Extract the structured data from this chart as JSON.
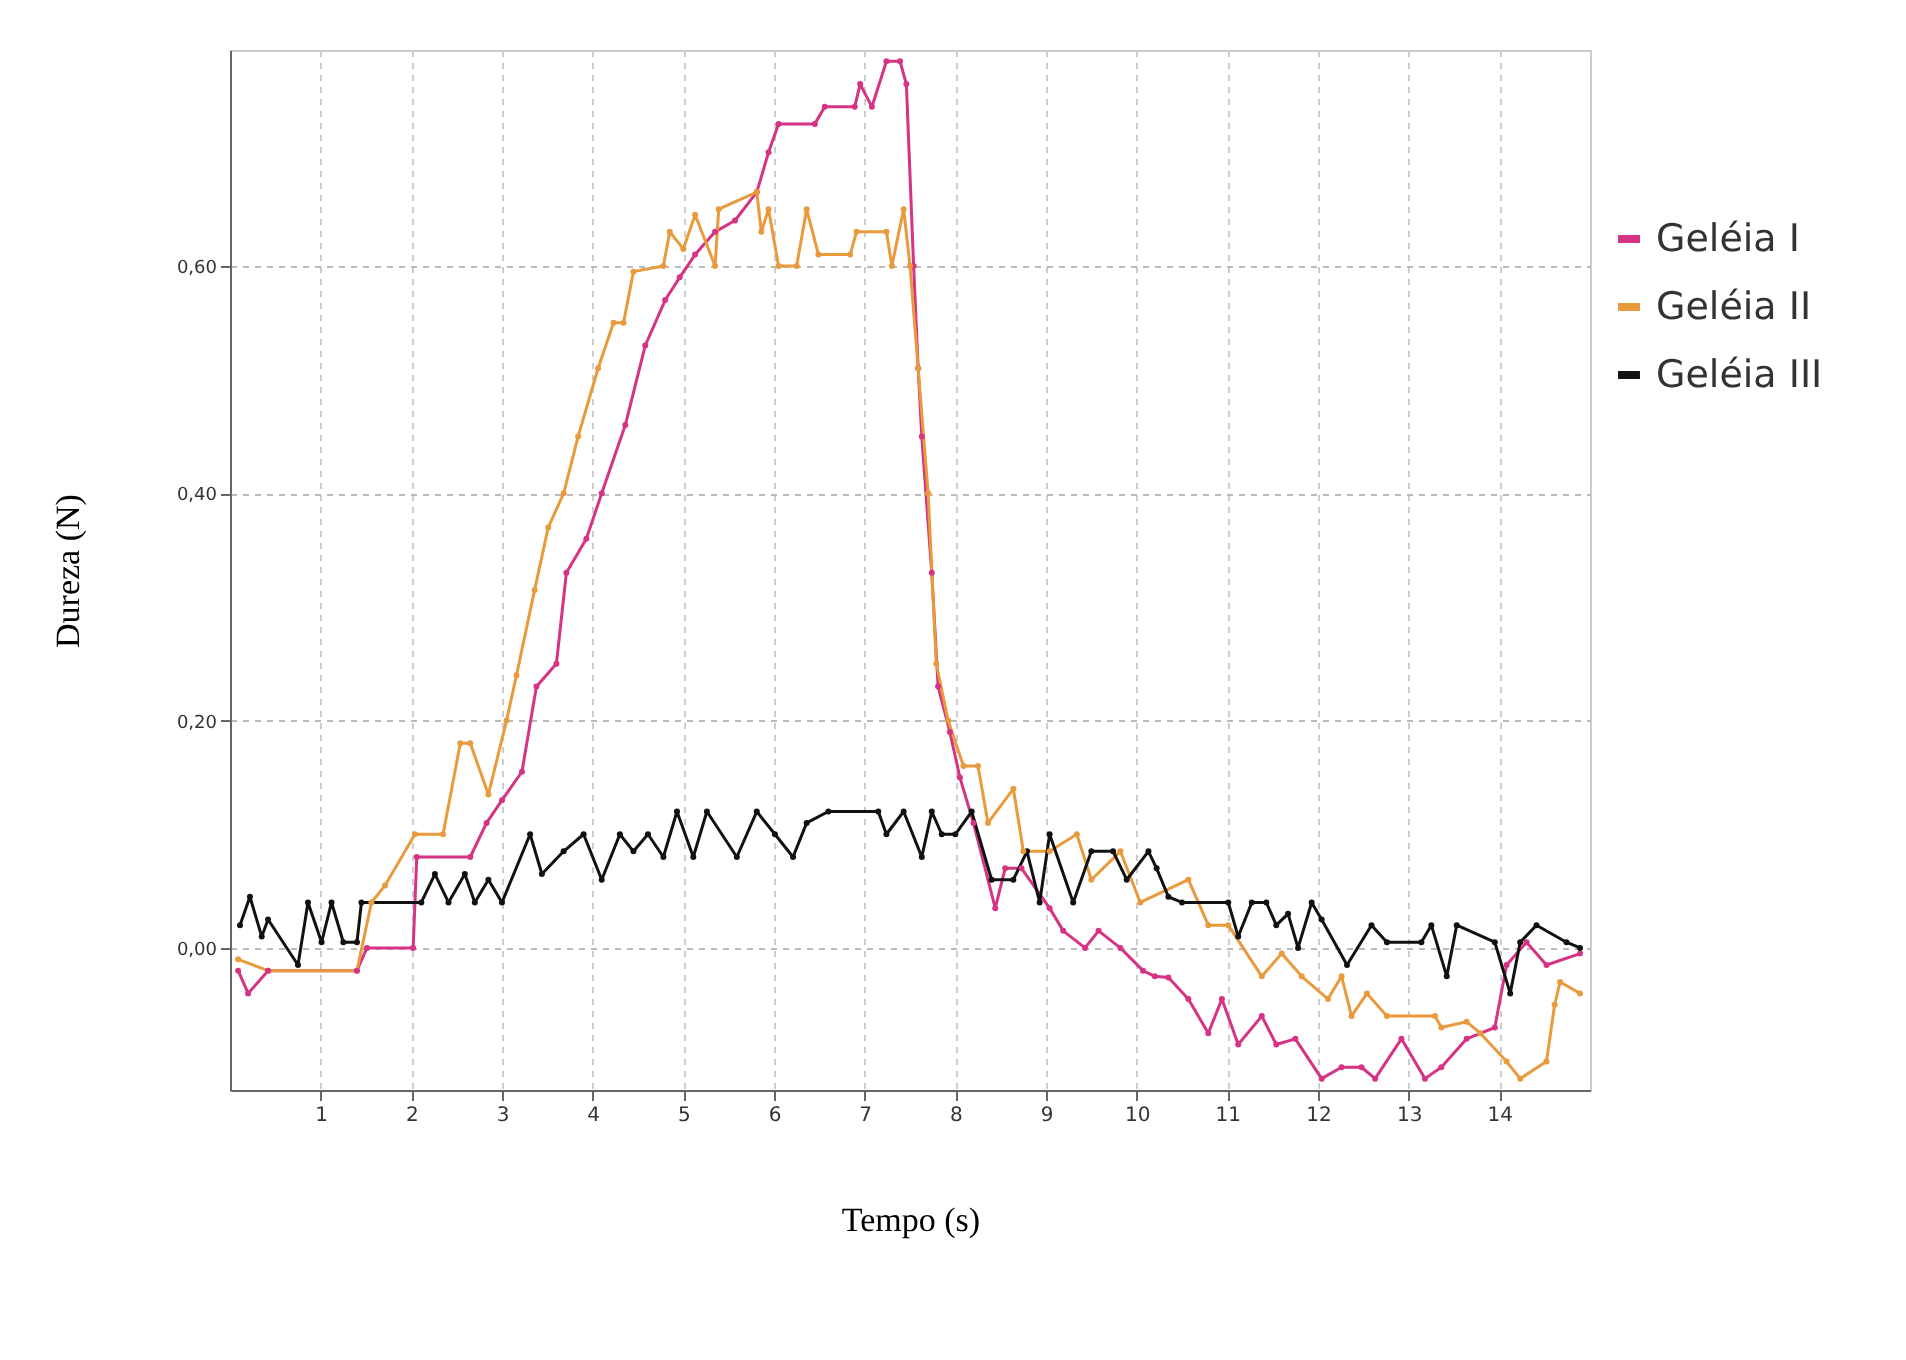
{
  "chart_data": {
    "type": "line",
    "xlabel": "Tempo (s)",
    "ylabel": "Dureza (N)",
    "xlim": [
      0,
      15
    ],
    "ylim": [
      -0.125,
      0.79
    ],
    "xticks": [
      1,
      2,
      3,
      4,
      5,
      6,
      7,
      8,
      9,
      10,
      11,
      12,
      13,
      14
    ],
    "yticks": [
      {
        "value": 0,
        "label": "0,00"
      },
      {
        "value": 0.2,
        "label": "0,20"
      },
      {
        "value": 0.4,
        "label": "0,40"
      },
      {
        "value": 0.6,
        "label": "0,60"
      }
    ],
    "grid": true,
    "legend": "right",
    "marker": "circle",
    "line_style": "solid",
    "series": [
      {
        "name": "Geléia I",
        "color": "#d63384",
        "x": [
          0.09,
          0.2,
          0.42,
          1.4,
          1.51,
          2.02,
          2.06,
          2.65,
          2.83,
          3.0,
          3.22,
          3.38,
          3.6,
          3.71,
          3.93,
          4.1,
          4.36,
          4.58,
          4.8,
          4.96,
          5.13,
          5.35,
          5.57,
          5.81,
          5.94,
          6.05,
          6.45,
          6.56,
          6.89,
          6.95,
          7.08,
          7.24,
          7.39,
          7.46,
          7.54,
          7.59,
          7.63,
          7.74,
          7.81,
          7.94,
          8.05,
          8.2,
          8.44,
          8.55,
          8.73,
          9.04,
          9.19,
          9.43,
          9.58,
          9.82,
          10.07,
          10.2,
          10.35,
          10.57,
          10.79,
          10.94,
          11.12,
          11.38,
          11.54,
          11.75,
          12.04,
          12.26,
          12.48,
          12.63,
          12.92,
          13.18,
          13.36,
          13.64,
          13.95,
          14.08,
          14.3,
          14.52,
          14.89
        ],
        "values": [
          -0.02,
          -0.04,
          -0.02,
          -0.02,
          0.0,
          0.0,
          0.08,
          0.08,
          0.11,
          0.13,
          0.155,
          0.23,
          0.25,
          0.33,
          0.36,
          0.4,
          0.46,
          0.53,
          0.57,
          0.59,
          0.61,
          0.63,
          0.64,
          0.665,
          0.7,
          0.725,
          0.725,
          0.74,
          0.74,
          0.76,
          0.74,
          0.78,
          0.78,
          0.76,
          0.6,
          0.51,
          0.45,
          0.33,
          0.23,
          0.19,
          0.15,
          0.11,
          0.035,
          0.07,
          0.07,
          0.035,
          0.015,
          0.0,
          0.015,
          0.0,
          -0.02,
          -0.025,
          -0.026,
          -0.045,
          -0.075,
          -0.045,
          -0.085,
          -0.06,
          -0.085,
          -0.08,
          -0.115,
          -0.105,
          -0.105,
          -0.115,
          -0.08,
          -0.115,
          -0.105,
          -0.08,
          -0.07,
          -0.015,
          0.005,
          -0.015,
          -0.005
        ]
      },
      {
        "name": "Geléia II",
        "color": "#e89a3c",
        "x": [
          0.09,
          0.42,
          1.4,
          1.56,
          1.71,
          2.04,
          2.35,
          2.54,
          2.65,
          2.85,
          3.05,
          3.16,
          3.36,
          3.51,
          3.68,
          3.84,
          4.06,
          4.23,
          4.34,
          4.45,
          4.78,
          4.85,
          5.0,
          5.13,
          5.35,
          5.39,
          5.81,
          5.86,
          5.94,
          6.05,
          6.25,
          6.36,
          6.49,
          6.84,
          6.91,
          7.24,
          7.3,
          7.43,
          7.5,
          7.59,
          7.7,
          7.79,
          7.92,
          8.09,
          8.25,
          8.36,
          8.64,
          8.75,
          9.04,
          9.34,
          9.5,
          9.82,
          10.04,
          10.57,
          10.79,
          11.01,
          11.38,
          11.6,
          11.82,
          12.11,
          12.26,
          12.37,
          12.54,
          12.76,
          13.29,
          13.36,
          13.64,
          13.79,
          14.08,
          14.23,
          14.52,
          14.61,
          14.67,
          14.89
        ],
        "values": [
          -0.01,
          -0.02,
          -0.02,
          0.04,
          0.055,
          0.1,
          0.1,
          0.18,
          0.18,
          0.135,
          0.2,
          0.24,
          0.315,
          0.37,
          0.4,
          0.45,
          0.51,
          0.55,
          0.55,
          0.595,
          0.6,
          0.63,
          0.615,
          0.645,
          0.6,
          0.65,
          0.665,
          0.63,
          0.65,
          0.6,
          0.6,
          0.65,
          0.61,
          0.61,
          0.63,
          0.63,
          0.6,
          0.65,
          0.6,
          0.51,
          0.4,
          0.25,
          0.2,
          0.16,
          0.16,
          0.11,
          0.14,
          0.085,
          0.085,
          0.1,
          0.06,
          0.085,
          0.04,
          0.06,
          0.02,
          0.02,
          -0.025,
          -0.005,
          -0.025,
          -0.045,
          -0.025,
          -0.06,
          -0.04,
          -0.06,
          -0.06,
          -0.07,
          -0.065,
          -0.075,
          -0.1,
          -0.115,
          -0.1,
          -0.05,
          -0.03,
          -0.04
        ]
      },
      {
        "name": "Geléia III",
        "color": "#111111",
        "x": [
          0.11,
          0.22,
          0.35,
          0.42,
          0.75,
          0.86,
          1.01,
          1.12,
          1.25,
          1.4,
          1.45,
          2.11,
          2.26,
          2.41,
          2.59,
          2.7,
          2.85,
          3.0,
          3.31,
          3.44,
          3.68,
          3.9,
          4.1,
          4.3,
          4.45,
          4.61,
          4.78,
          4.93,
          5.11,
          5.26,
          5.59,
          5.81,
          6.01,
          6.21,
          6.36,
          6.6,
          7.15,
          7.24,
          7.43,
          7.63,
          7.74,
          7.85,
          8.0,
          8.18,
          8.4,
          8.64,
          8.79,
          8.93,
          9.04,
          9.3,
          9.5,
          9.74,
          9.89,
          10.13,
          10.22,
          10.35,
          10.5,
          11.01,
          11.12,
          11.27,
          11.43,
          11.54,
          11.67,
          11.78,
          11.93,
          12.04,
          12.32,
          12.59,
          12.76,
          13.14,
          13.25,
          13.42,
          13.53,
          13.95,
          14.12,
          14.23,
          14.41,
          14.74,
          14.89
        ],
        "values": [
          0.02,
          0.045,
          0.01,
          0.025,
          -0.015,
          0.04,
          0.005,
          0.04,
          0.005,
          0.005,
          0.04,
          0.04,
          0.065,
          0.04,
          0.065,
          0.04,
          0.06,
          0.04,
          0.1,
          0.065,
          0.085,
          0.1,
          0.06,
          0.1,
          0.085,
          0.1,
          0.08,
          0.12,
          0.08,
          0.12,
          0.08,
          0.12,
          0.1,
          0.08,
          0.11,
          0.12,
          0.12,
          0.1,
          0.12,
          0.08,
          0.12,
          0.1,
          0.1,
          0.12,
          0.06,
          0.06,
          0.085,
          0.04,
          0.1,
          0.04,
          0.085,
          0.085,
          0.06,
          0.085,
          0.07,
          0.045,
          0.04,
          0.04,
          0.01,
          0.04,
          0.04,
          0.02,
          0.03,
          0.0,
          0.04,
          0.025,
          -0.015,
          0.02,
          0.005,
          0.005,
          0.02,
          -0.025,
          0.02,
          0.005,
          -0.04,
          0.005,
          0.02,
          0.005,
          0.0
        ]
      }
    ]
  }
}
